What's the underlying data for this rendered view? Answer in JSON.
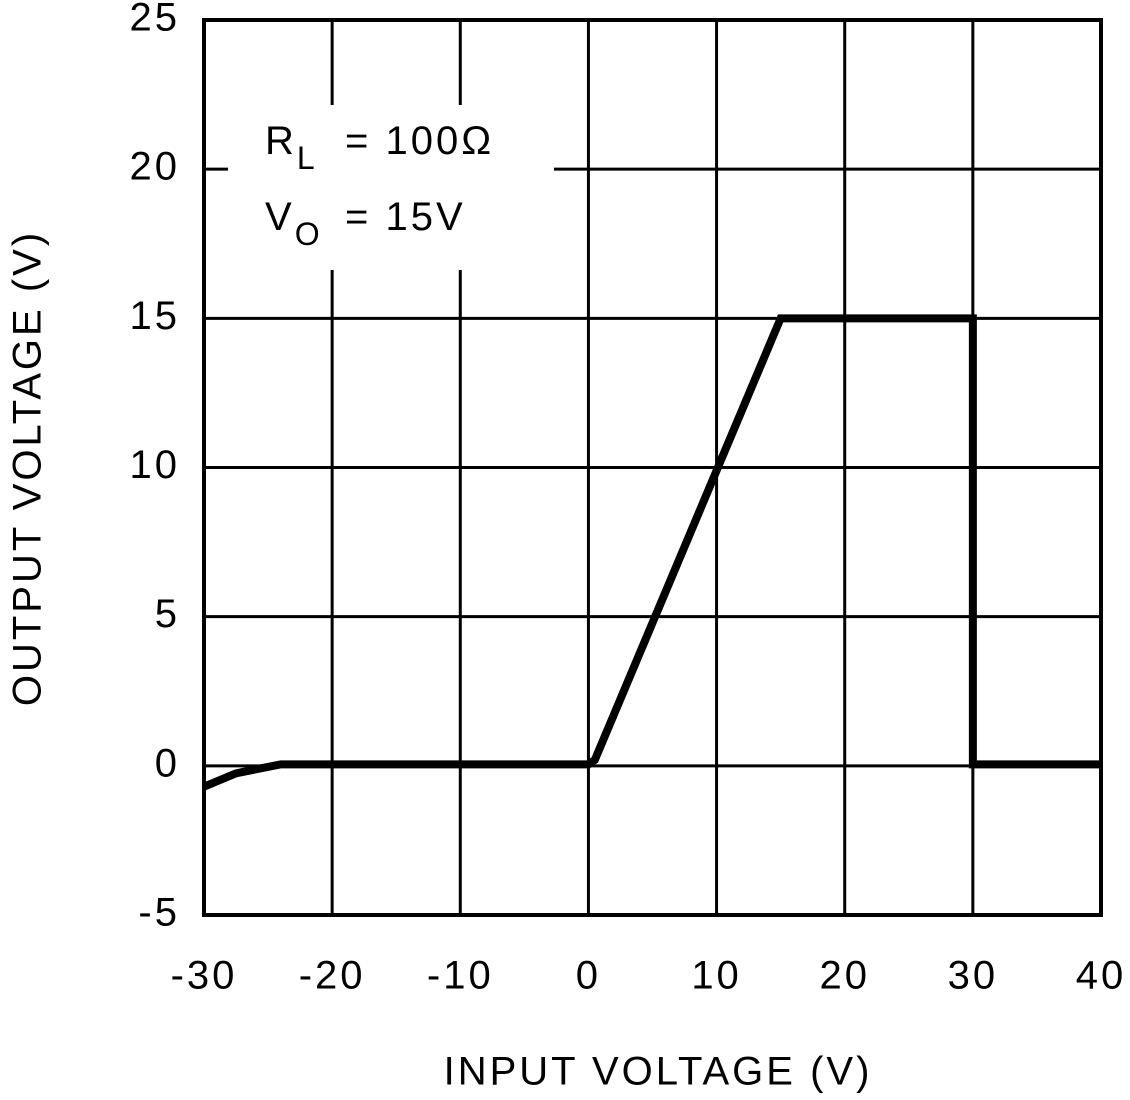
{
  "chart_data": {
    "type": "line",
    "xlabel": "INPUT VOLTAGE (V)",
    "ylabel": "OUTPUT VOLTAGE (V)",
    "x": [
      -30,
      -27.5,
      -24,
      0,
      0.5,
      15,
      30,
      30,
      40
    ],
    "series": [
      {
        "color": "#000000",
        "values": [
          -0.7,
          -0.25,
          0.05,
          0.05,
          0.2,
          15,
          15,
          0.05,
          0.05
        ]
      }
    ],
    "xlim": [
      -30,
      40
    ],
    "xticks": [
      -30,
      -20,
      -10,
      0,
      10,
      20,
      30,
      40
    ],
    "ylim": [
      -5,
      25
    ],
    "yticks": [
      -5,
      0,
      5,
      10,
      15,
      20,
      25
    ],
    "grid": true,
    "annotations": [
      {
        "main": "R",
        "sub": "L",
        "rest": "=  100Ω"
      },
      {
        "main": "V",
        "sub": "O",
        "rest": "=  15V"
      }
    ]
  }
}
